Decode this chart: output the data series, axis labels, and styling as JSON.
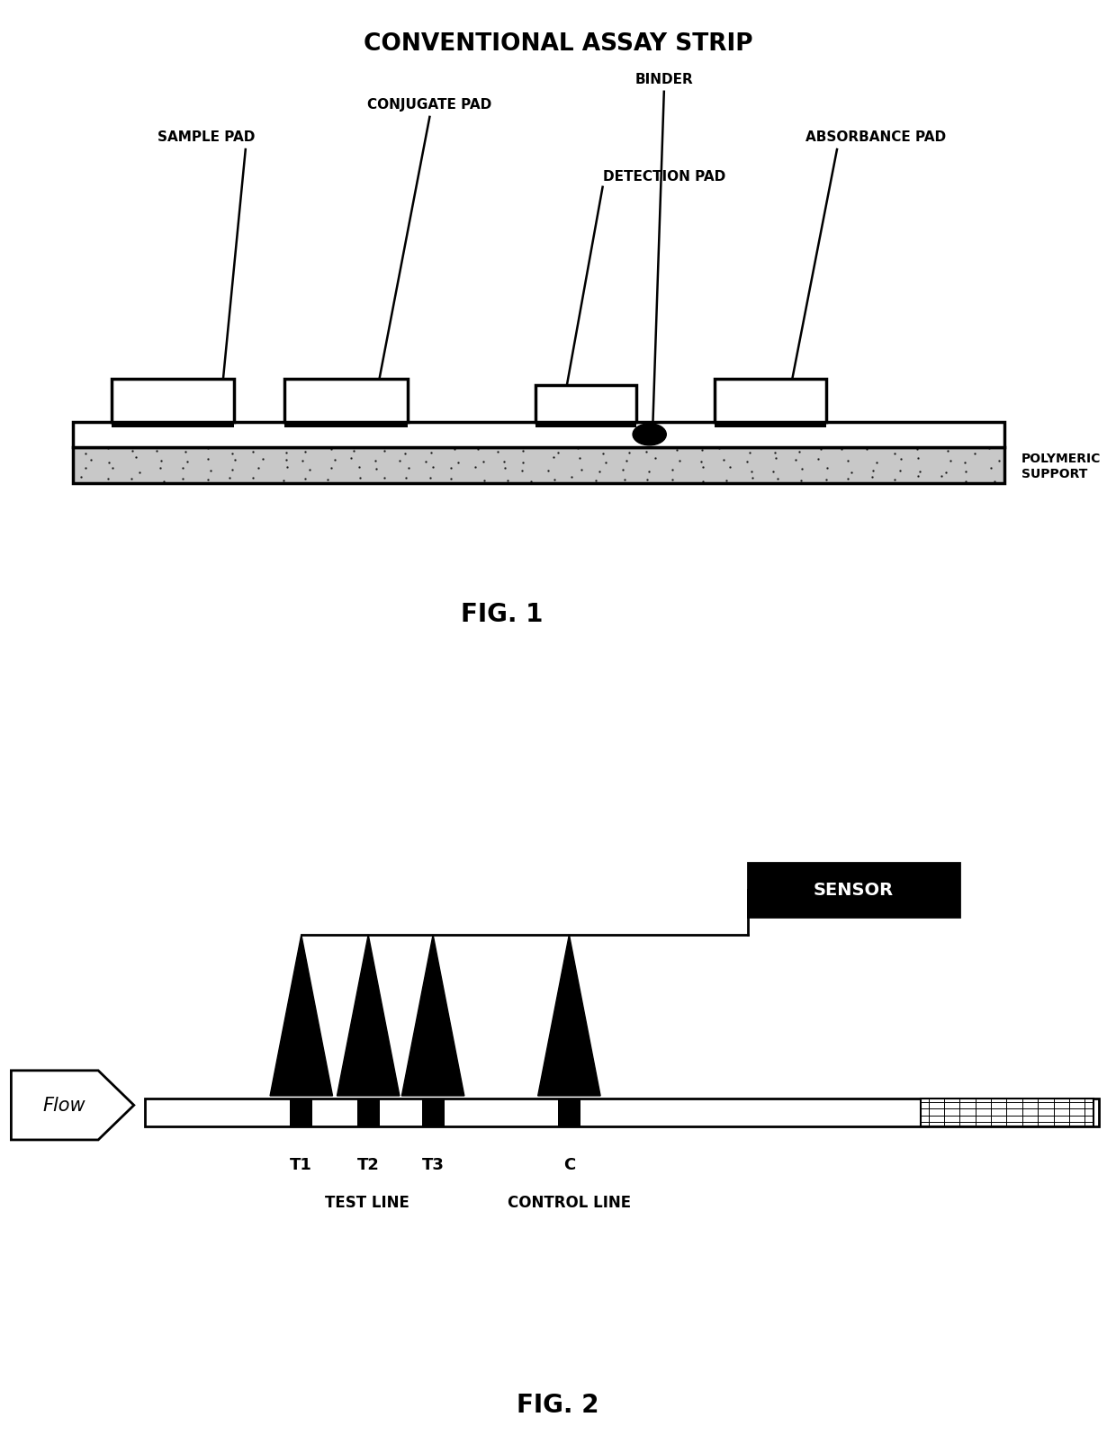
{
  "title1": "CONVENTIONAL ASSAY STRIP",
  "fig1_label": "FIG. 1",
  "fig2_label": "FIG. 2",
  "labels": {
    "sample_pad": "SAMPLE PAD",
    "conjugate_pad": "CONJUGATE PAD",
    "detection_pad": "DETECTION PAD",
    "binder": "BINDER",
    "absorbance_pad": "ABSORBANCE PAD",
    "polymeric_support": "POLYMERIC\nSUPPORT",
    "flow": "Flow",
    "sensor": "SENSOR",
    "t1": "T1",
    "t2": "T2",
    "t3": "T3",
    "c": "C",
    "test_line": "TEST LINE",
    "control_line": "CONTROL LINE"
  },
  "bg_color": "#ffffff",
  "fg_color": "#000000"
}
